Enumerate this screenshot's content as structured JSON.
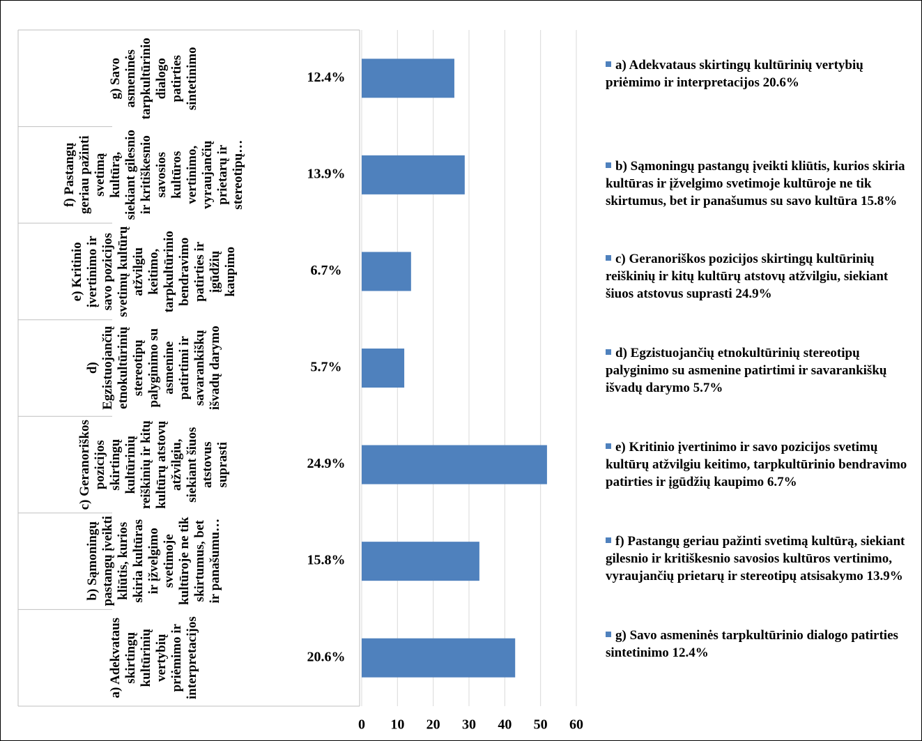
{
  "chart_data": {
    "type": "bar",
    "orientation": "horizontal",
    "categories": [
      "a) Adekvataus skirtingų kultūrinių vertybių priėmimo ir interpretacijos",
      "b) Sąmoningų pastangų įveikti kliūtis, kurios skiria kultūras ir įžvelgimo svetimoje kultūroje ne tik skirtumus, bet ir panašumu…",
      "c) Geranoriškos pozicijos skirtingų kultūrinių reiškinių ir kitų kultūrų atstovų atžvilgiu, siekiant šiuos atstovus suprasti",
      "d) Egzistuojančių etnokultūrinių stereotipų palyginimo su asmenine patirtimi ir savarankiškų išvadų darymo",
      "e) Kritinio įvertinimo ir savo pozicijos svetimų kultūrų atžvilgiu keitimo, tarpkultūrinio bendravimo patirties ir įgūdžių kaupimo",
      "f) Pastangų geriau pažinti svetimą kultūrą, siekiant gilesnio ir kritiškesnio savosios kultūros vertinimo, vyraujančių prietarų ir stereotipų…",
      "g) Savo asmeninės tarpkultūrinio dialogo patirties sintetinimo"
    ],
    "sub_categories": [
      "20.6%",
      "15.8%",
      "24.9%",
      "5.7%",
      "6.7%",
      "13.9%",
      "12.4%"
    ],
    "values": [
      42.9,
      32.9,
      51.8,
      11.9,
      13.8,
      28.8,
      25.9
    ],
    "color": "#4f81bd",
    "xlim": [
      0,
      60
    ],
    "xticks": [
      0,
      10,
      20,
      30,
      40,
      50,
      60
    ],
    "grid": true,
    "legend_entries": [
      "a) Adekvataus skirtingų kultūrinių vertybių priėmimo ir interpretacijos 20.6%",
      "b) Sąmoningų pastangų įveikti kliūtis, kurios skiria kultūras ir įžvelgimo svetimoje kultūroje ne tik skirtumus, bet ir panašumus su savo kultūra 15.8%",
      "c) Geranoriškos pozicijos skirtingų kultūrinių reiškinių ir kitų kultūrų atstovų atžvilgiu, siekiant šiuos atstovus suprasti 24.9%",
      "d) Egzistuojančių etnokultūrinių stereotipų palyginimo su asmenine patirtimi ir savarankiškų išvadų darymo 5.7%",
      "e) Kritinio įvertinimo ir savo pozicijos svetimų kultūrų atžvilgiu keitimo, tarpkultūrinio bendravimo patirties ir įgūdžių kaupimo 6.7%",
      "f) Pastangų geriau pažinti svetimą kultūrą, siekiant gilesnio ir kritiškesnio savosios kultūros vertinimo, vyraujančių prietarų ir stereotipų atsisakymo 13.9%",
      "g) Savo asmeninės tarpkultūrinio dialogo patirties sintetinimo 12.4%"
    ],
    "legend": "right"
  }
}
